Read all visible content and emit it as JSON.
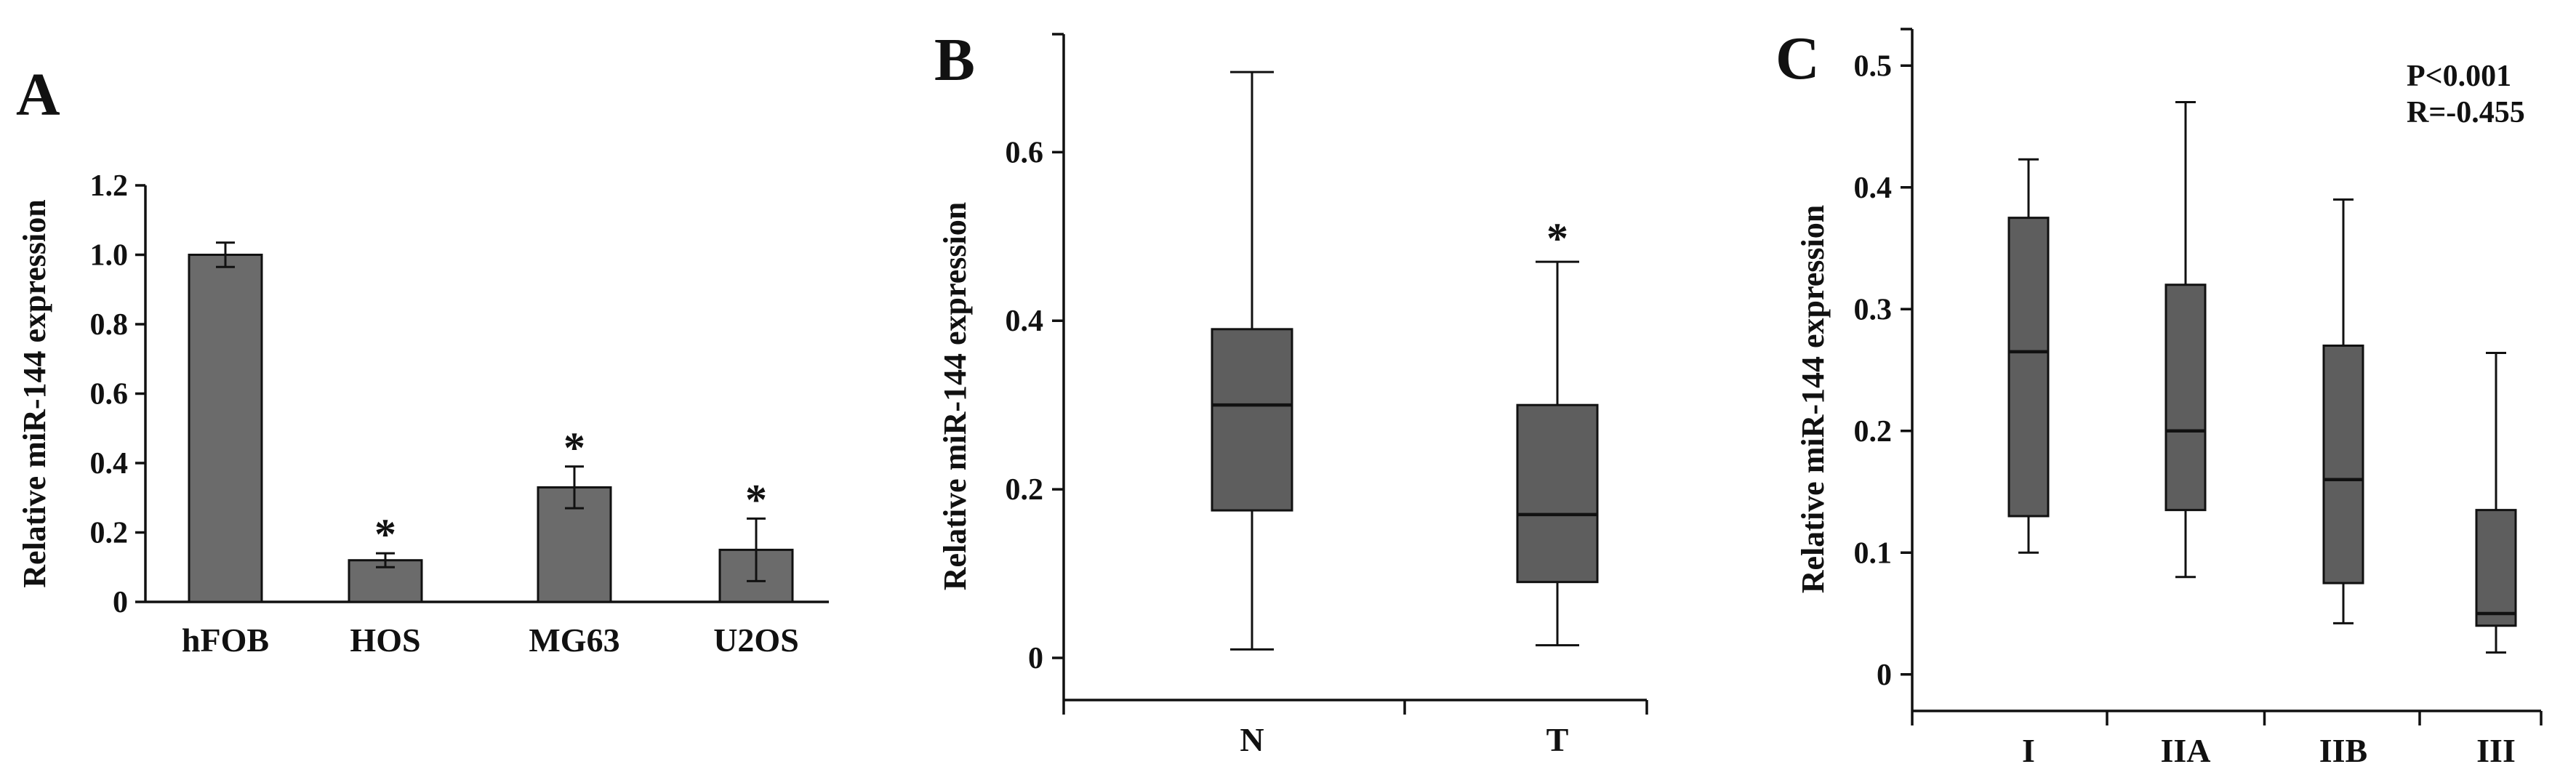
{
  "colors": {
    "bar": "#6b6b6b",
    "box": "#5e5e5e",
    "ink": "#111111"
  },
  "chart_data": [
    {
      "panel": "A",
      "type": "bar",
      "ylabel": "Relative miR-144 expression",
      "categories": [
        "hFOB",
        "HOS",
        "MG63",
        "U2OS"
      ],
      "values": [
        1.0,
        0.12,
        0.33,
        0.15
      ],
      "errors": [
        0.035,
        0.02,
        0.06,
        0.09
      ],
      "significant": [
        false,
        true,
        true,
        true
      ],
      "annotation_symbol": "*",
      "ylim": [
        0,
        1.2
      ],
      "yticks": [
        0,
        0.2,
        0.4,
        0.6,
        0.8,
        1.0,
        1.2
      ],
      "ytick_labels": [
        "0",
        "0.2",
        "0.4",
        "0.6",
        "0.8",
        "1.0",
        "1.2"
      ]
    },
    {
      "panel": "B",
      "type": "box",
      "ylabel": "Relative miR-144 expression",
      "categories": [
        "N",
        "T"
      ],
      "boxes": [
        {
          "min": 0.01,
          "q1": 0.175,
          "median": 0.3,
          "q3": 0.39,
          "max": 0.695
        },
        {
          "min": 0.015,
          "q1": 0.09,
          "median": 0.17,
          "q3": 0.3,
          "max": 0.47
        }
      ],
      "significant": [
        false,
        true
      ],
      "annotation_symbol": "*",
      "ylim": [
        -0.05,
        0.74
      ],
      "yticks": [
        0,
        0.2,
        0.4,
        0.6
      ],
      "ytick_labels": [
        "0",
        "0.2",
        "0.4",
        "0.6"
      ]
    },
    {
      "panel": "C",
      "type": "box",
      "ylabel": "Relative miR-144 expression",
      "categories": [
        "I",
        "IIA",
        "IIB",
        "III"
      ],
      "boxes": [
        {
          "min": 0.1,
          "q1": 0.13,
          "median": 0.265,
          "q3": 0.375,
          "max": 0.423
        },
        {
          "min": 0.08,
          "q1": 0.135,
          "median": 0.2,
          "q3": 0.32,
          "max": 0.47
        },
        {
          "min": 0.042,
          "q1": 0.075,
          "median": 0.16,
          "q3": 0.27,
          "max": 0.39
        },
        {
          "min": 0.018,
          "q1": 0.04,
          "median": 0.05,
          "q3": 0.135,
          "max": 0.264
        }
      ],
      "stats": [
        "P<0.001",
        "R=-0.455"
      ],
      "ylim": [
        -0.03,
        0.53
      ],
      "yticks": [
        0,
        0.1,
        0.2,
        0.3,
        0.4,
        0.5
      ],
      "ytick_labels": [
        "0",
        "0.1",
        "0.2",
        "0.3",
        "0.4",
        "0.5"
      ]
    }
  ]
}
